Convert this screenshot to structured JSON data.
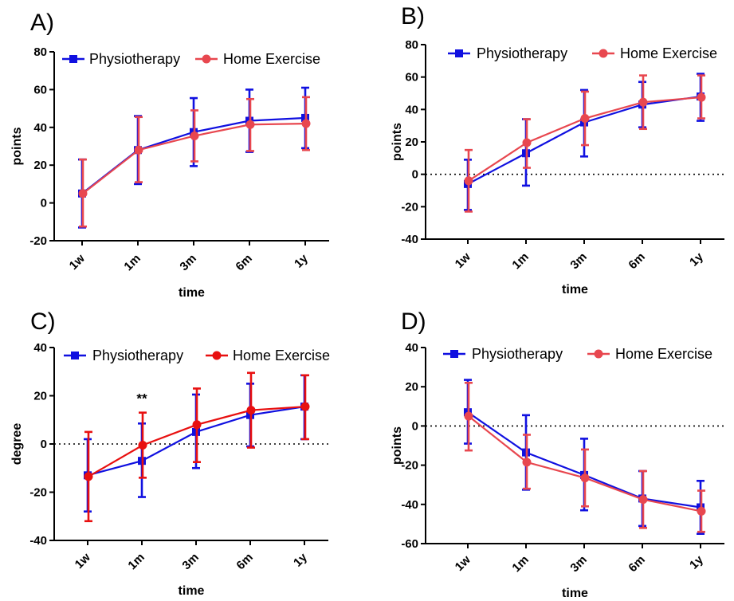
{
  "colors": {
    "physio": "#1010e0",
    "home": "#e8474f",
    "home_c": "#e81010",
    "axis": "#000000"
  },
  "chart_data": [
    {
      "panel": "A)",
      "type": "line",
      "categories": [
        "1w",
        "1m",
        "3m",
        "6m",
        "1y"
      ],
      "xlabel": "time",
      "ylabel": "points",
      "ylim": [
        -20,
        80
      ],
      "yticks": [
        -20,
        0,
        20,
        40,
        60,
        80
      ],
      "zero_line": false,
      "legend": "top",
      "series": [
        {
          "name": "Physiotherapy",
          "marker": "square",
          "color_key": "physio",
          "values": [
            5,
            28,
            37.5,
            43.5,
            45
          ],
          "err_low": [
            -13,
            10,
            19.5,
            27,
            29
          ],
          "err_high": [
            23,
            46,
            55.5,
            60,
            61
          ]
        },
        {
          "name": "Home Exercise",
          "marker": "circle",
          "color_key": "home",
          "values": [
            5,
            28,
            35.5,
            41.5,
            42
          ],
          "err_low": [
            -12.5,
            11,
            22,
            27.5,
            28
          ],
          "err_high": [
            23,
            45.5,
            49,
            55,
            56
          ]
        }
      ],
      "annotations": []
    },
    {
      "panel": "B)",
      "type": "line",
      "categories": [
        "1w",
        "1m",
        "3m",
        "6m",
        "1y"
      ],
      "xlabel": "time",
      "ylabel": "points",
      "ylim": [
        -40,
        80
      ],
      "yticks": [
        -40,
        -20,
        0,
        20,
        40,
        60,
        80
      ],
      "zero_line": true,
      "legend": "top",
      "series": [
        {
          "name": "Physiotherapy",
          "marker": "square",
          "color_key": "physio",
          "values": [
            -6,
            13,
            32,
            43,
            48
          ],
          "err_low": [
            -22,
            -7,
            11,
            29,
            33
          ],
          "err_high": [
            9,
            34,
            52,
            57,
            62
          ]
        },
        {
          "name": "Home Exercise",
          "marker": "circle",
          "color_key": "home",
          "values": [
            -4,
            19.5,
            34.5,
            44.5,
            47.5
          ],
          "err_low": [
            -23,
            4,
            18,
            28,
            34.5
          ],
          "err_high": [
            15,
            34,
            51,
            61,
            61
          ]
        }
      ],
      "annotations": []
    },
    {
      "panel": "C)",
      "type": "line",
      "categories": [
        "1w",
        "1m",
        "3m",
        "6m",
        "1y"
      ],
      "xlabel": "time",
      "ylabel": "degree",
      "ylim": [
        -40,
        40
      ],
      "yticks": [
        -40,
        -20,
        0,
        20,
        40
      ],
      "zero_line": true,
      "legend": "top",
      "series": [
        {
          "name": "Physiotherapy",
          "marker": "square",
          "color_key": "physio",
          "values": [
            -13,
            -7,
            5,
            12,
            15.5
          ],
          "err_low": [
            -28,
            -22,
            -10,
            -1,
            2
          ],
          "err_high": [
            2,
            8.5,
            20.5,
            25,
            28.5
          ]
        },
        {
          "name": "Home Exercise",
          "marker": "circle",
          "color_key": "home_c",
          "values": [
            -13.5,
            -0.5,
            8,
            14,
            15.5
          ],
          "err_low": [
            -32,
            -14,
            -7.5,
            -1.5,
            2
          ],
          "err_high": [
            5,
            13,
            23,
            29.5,
            28.5
          ]
        }
      ],
      "annotations": [
        {
          "text": "**",
          "category": "1m",
          "y": 19
        }
      ]
    },
    {
      "panel": "D)",
      "type": "line",
      "categories": [
        "1w",
        "1m",
        "3m",
        "6m",
        "1y"
      ],
      "xlabel": "time",
      "ylabel": "points",
      "ylim": [
        -60,
        40
      ],
      "yticks": [
        -60,
        -40,
        -20,
        0,
        20,
        40
      ],
      "zero_line": true,
      "legend": "top",
      "series": [
        {
          "name": "Physiotherapy",
          "marker": "square",
          "color_key": "physio",
          "values": [
            7,
            -13.5,
            -25,
            -37,
            -41.5
          ],
          "err_low": [
            -9,
            -32.5,
            -43,
            -51,
            -55
          ],
          "err_high": [
            23.5,
            5.5,
            -6.5,
            -23,
            -28
          ]
        },
        {
          "name": "Home Exercise",
          "marker": "circle",
          "color_key": "home",
          "values": [
            5,
            -18.5,
            -26.5,
            -37.5,
            -43.5
          ],
          "err_low": [
            -12.5,
            -32,
            -41,
            -52,
            -54
          ],
          "err_high": [
            22,
            -4.5,
            -12,
            -23,
            -33
          ]
        }
      ],
      "annotations": []
    }
  ]
}
